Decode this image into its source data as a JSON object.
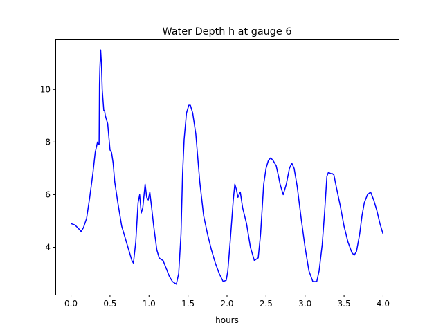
{
  "chart_data": {
    "type": "line",
    "title": "Water Depth h at gauge 6",
    "xlabel": "hours",
    "ylabel": "",
    "xlim": [
      -0.2,
      4.2
    ],
    "ylim": [
      2.2,
      11.9
    ],
    "xticks": [
      0.0,
      0.5,
      1.0,
      1.5,
      2.0,
      2.5,
      3.0,
      3.5,
      4.0
    ],
    "xtick_labels": [
      "0.0",
      "0.5",
      "1.0",
      "1.5",
      "2.0",
      "2.5",
      "3.0",
      "3.5",
      "4.0"
    ],
    "yticks": [
      4,
      6,
      8,
      10
    ],
    "ytick_labels": [
      "4",
      "6",
      "8",
      "10"
    ],
    "grid": false,
    "series": [
      {
        "color": "#0000ff",
        "x": [
          0.0,
          0.05,
          0.1,
          0.13,
          0.16,
          0.2,
          0.24,
          0.28,
          0.31,
          0.34,
          0.355,
          0.36,
          0.365,
          0.37,
          0.38,
          0.39,
          0.4,
          0.42,
          0.43,
          0.44,
          0.45,
          0.47,
          0.5,
          0.52,
          0.54,
          0.56,
          0.6,
          0.65,
          0.7,
          0.75,
          0.78,
          0.8,
          0.83,
          0.86,
          0.88,
          0.9,
          0.92,
          0.95,
          0.97,
          0.99,
          1.01,
          1.03,
          1.06,
          1.1,
          1.13,
          1.15,
          1.18,
          1.22,
          1.26,
          1.3,
          1.35,
          1.38,
          1.41,
          1.43,
          1.45,
          1.48,
          1.51,
          1.53,
          1.56,
          1.6,
          1.65,
          1.7,
          1.75,
          1.8,
          1.85,
          1.9,
          1.95,
          1.99,
          2.01,
          2.04,
          2.08,
          2.1,
          2.12,
          2.14,
          2.17,
          2.2,
          2.25,
          2.3,
          2.35,
          2.4,
          2.43,
          2.47,
          2.5,
          2.53,
          2.56,
          2.59,
          2.63,
          2.66,
          2.68,
          2.72,
          2.76,
          2.8,
          2.83,
          2.86,
          2.9,
          2.95,
          3.0,
          3.05,
          3.1,
          3.15,
          3.18,
          3.22,
          3.25,
          3.28,
          3.3,
          3.33,
          3.35,
          3.37,
          3.4,
          3.45,
          3.5,
          3.55,
          3.6,
          3.63,
          3.66,
          3.7,
          3.73,
          3.76,
          3.8,
          3.84,
          3.88,
          3.92,
          3.96,
          4.0
        ],
        "y": [
          4.9,
          4.85,
          4.7,
          4.6,
          4.75,
          5.1,
          5.9,
          6.8,
          7.6,
          8.0,
          7.9,
          7.9,
          10.2,
          10.8,
          11.5,
          11.0,
          10.0,
          9.2,
          9.2,
          9.0,
          8.9,
          8.7,
          7.7,
          7.6,
          7.2,
          6.5,
          5.7,
          4.8,
          4.3,
          3.8,
          3.5,
          3.4,
          4.2,
          5.7,
          6.0,
          5.3,
          5.5,
          6.4,
          5.9,
          5.8,
          6.1,
          5.6,
          4.8,
          3.9,
          3.6,
          3.55,
          3.5,
          3.2,
          2.9,
          2.7,
          2.6,
          3.0,
          4.5,
          6.8,
          8.1,
          9.1,
          9.4,
          9.4,
          9.1,
          8.3,
          6.5,
          5.2,
          4.5,
          3.9,
          3.4,
          3.0,
          2.7,
          2.75,
          3.1,
          4.2,
          5.8,
          6.4,
          6.2,
          5.9,
          6.1,
          5.5,
          4.9,
          4.0,
          3.5,
          3.6,
          4.5,
          6.4,
          7.0,
          7.3,
          7.4,
          7.3,
          7.1,
          6.7,
          6.4,
          6.0,
          6.4,
          7.0,
          7.2,
          7.0,
          6.3,
          5.1,
          4.0,
          3.1,
          2.7,
          2.7,
          3.1,
          4.1,
          5.3,
          6.7,
          6.85,
          6.8,
          6.8,
          6.75,
          6.3,
          5.6,
          4.8,
          4.2,
          3.8,
          3.7,
          3.85,
          4.5,
          5.2,
          5.7,
          6.0,
          6.1,
          5.8,
          5.4,
          4.9,
          4.5
        ]
      }
    ]
  }
}
